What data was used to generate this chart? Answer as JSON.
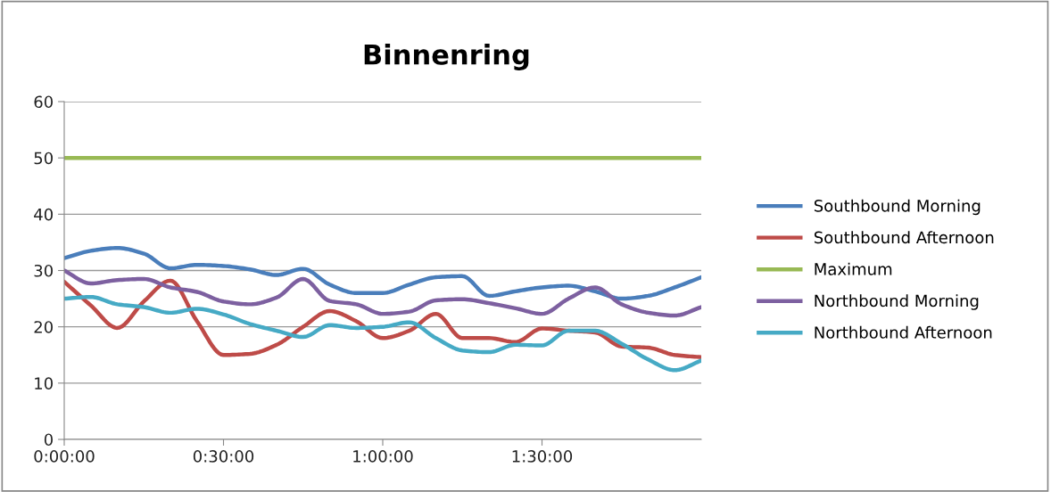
{
  "chart_data": {
    "type": "line",
    "title": "Binnenring",
    "x": [
      0,
      0.0833,
      0.1667,
      0.25,
      0.3333,
      0.4167,
      0.5,
      0.5833,
      0.6667,
      0.75,
      0.8333,
      0.9167,
      1,
      1.0833,
      1.1667,
      1.25,
      1.3333,
      1.4167,
      1.5,
      1.5833,
      1.6667,
      1.75,
      1.8333,
      1.9167,
      2
    ],
    "xlim": [
      0,
      2
    ],
    "xticks": [
      {
        "value": 0,
        "label": "0:00:00"
      },
      {
        "value": 0.5,
        "label": "0:30:00"
      },
      {
        "value": 1,
        "label": "1:00:00"
      },
      {
        "value": 1.5,
        "label": "1:30:00"
      }
    ],
    "ylim": [
      0,
      60
    ],
    "yticks": [
      0,
      10,
      20,
      30,
      40,
      50,
      60
    ],
    "grid": "y",
    "legend": "right",
    "marker": "none",
    "line_style": "solid",
    "series": [
      {
        "name": "Southbound Morning",
        "color": "#4a7ebb",
        "values": [
          32.2,
          33.5,
          34,
          33,
          30.4,
          31,
          30.8,
          30.2,
          29.2,
          30.3,
          27.5,
          26,
          26,
          27.5,
          28.8,
          29,
          25.5,
          26.3,
          27,
          27.3,
          26.3,
          25,
          25.5,
          27,
          28.8
        ]
      },
      {
        "name": "Southbound Afternoon",
        "color": "#be4b48",
        "values": [
          28,
          23.8,
          19.8,
          24.5,
          28.2,
          21,
          15,
          15.2,
          16.8,
          20,
          22.8,
          21,
          18,
          19.3,
          22.3,
          18,
          18,
          17.3,
          19.7,
          19.3,
          19,
          16.5,
          16.3,
          15,
          14.6
        ]
      },
      {
        "name": "Maximum",
        "color": "#98b954",
        "values": [
          50,
          50,
          50,
          50,
          50,
          50,
          50,
          50,
          50,
          50,
          50,
          50,
          50,
          50,
          50,
          50,
          50,
          50,
          50,
          50,
          50,
          50,
          50,
          50,
          50
        ]
      },
      {
        "name": "Northbound Morning",
        "color": "#7d60a0",
        "values": [
          30,
          27.7,
          28.3,
          28.5,
          27,
          26.2,
          24.5,
          24,
          25.2,
          28.5,
          24.6,
          24,
          22.3,
          22.7,
          24.7,
          24.9,
          24.2,
          23.3,
          22.3,
          25,
          27,
          24,
          22.5,
          22,
          23.5
        ]
      },
      {
        "name": "Northbound Afternoon",
        "color": "#46aac5",
        "values": [
          25,
          25.3,
          24,
          23.5,
          22.5,
          23.2,
          22.2,
          20.5,
          19.3,
          18.2,
          20.3,
          19.8,
          20,
          20.8,
          18,
          15.8,
          15.5,
          16.8,
          16.7,
          19.3,
          19.3,
          17,
          14.2,
          12.3,
          14
        ]
      }
    ]
  }
}
